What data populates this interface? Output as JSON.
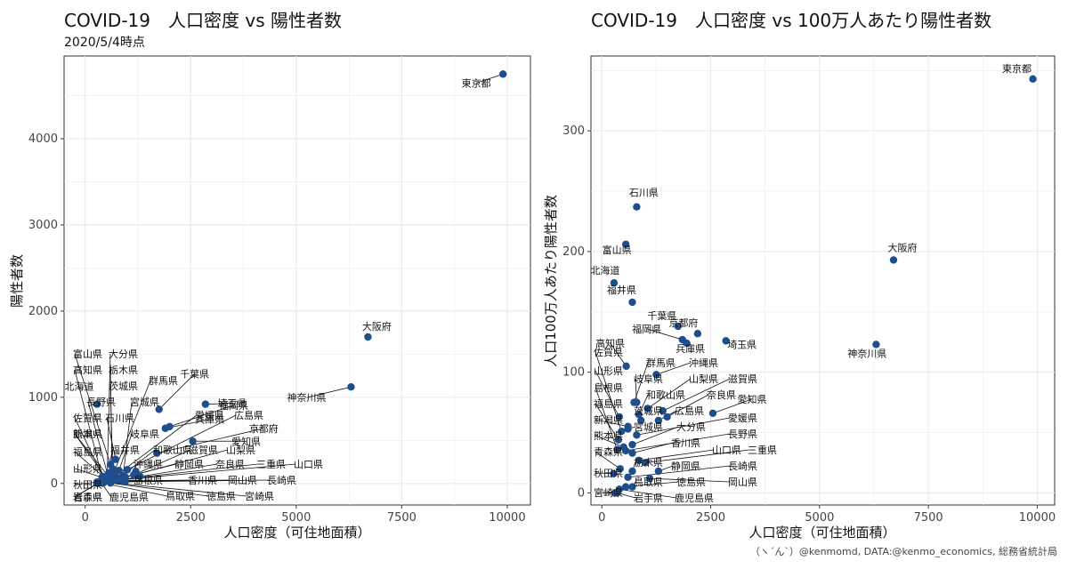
{
  "caption": "（ヽ´ん`）@kenmomd, DATA:@kenmo_economics, 総務省統計局",
  "colors": {
    "point": "#1f4e8c",
    "grid": "#ebebeb",
    "frame": "#333333"
  },
  "chart_data": [
    {
      "type": "scatter",
      "title": "COVID-19　人口密度 vs 陽性者数",
      "subtitle": "2020/5/4時点",
      "xlabel": "人口密度（可住地面積）",
      "ylabel": "陽性者数",
      "xlim": [
        -500,
        10550
      ],
      "ylim": [
        -250,
        4960
      ],
      "xticks": [
        0,
        2500,
        5000,
        7500,
        10000
      ],
      "yticks": [
        0,
        1000,
        2000,
        3000,
        4000
      ],
      "points": [
        {
          "name": "東京都",
          "x": 9900,
          "y": 4750
        },
        {
          "name": "大阪府",
          "x": 6700,
          "y": 1700
        },
        {
          "name": "神奈川県",
          "x": 6300,
          "y": 1120
        },
        {
          "name": "埼玉県",
          "x": 2850,
          "y": 920
        },
        {
          "name": "千葉県",
          "x": 1750,
          "y": 860
        },
        {
          "name": "北海道",
          "x": 280,
          "y": 920
        },
        {
          "name": "愛知県",
          "x": 2550,
          "y": 490
        },
        {
          "name": "福岡県",
          "x": 2000,
          "y": 660
        },
        {
          "name": "兵庫県",
          "x": 1900,
          "y": 640
        },
        {
          "name": "京都府",
          "x": 1700,
          "y": 350
        },
        {
          "name": "石川県",
          "x": 720,
          "y": 280
        },
        {
          "name": "富山県",
          "x": 600,
          "y": 220
        },
        {
          "name": "茨城県",
          "x": 650,
          "y": 170
        },
        {
          "name": "群馬県",
          "x": 700,
          "y": 150
        },
        {
          "name": "広島県",
          "x": 1000,
          "y": 160
        },
        {
          "name": "福井県",
          "x": 560,
          "y": 120
        },
        {
          "name": "岐阜県",
          "x": 800,
          "y": 150
        },
        {
          "name": "沖縄県",
          "x": 1200,
          "y": 140
        },
        {
          "name": "宮城県",
          "x": 900,
          "y": 90
        },
        {
          "name": "滋賀県",
          "x": 1150,
          "y": 100
        },
        {
          "name": "大分県",
          "x": 520,
          "y": 60
        },
        {
          "name": "栃木県",
          "x": 640,
          "y": 60
        },
        {
          "name": "和歌山県",
          "x": 800,
          "y": 60
        },
        {
          "name": "愛媛県",
          "x": 700,
          "y": 80
        },
        {
          "name": "奈良県",
          "x": 1300,
          "y": 80
        },
        {
          "name": "山梨県",
          "x": 850,
          "y": 60
        },
        {
          "name": "静岡県",
          "x": 950,
          "y": 75
        },
        {
          "name": "高知県",
          "x": 400,
          "y": 70
        },
        {
          "name": "長野県",
          "x": 550,
          "y": 70
        },
        {
          "name": "新潟県",
          "x": 500,
          "y": 60
        },
        {
          "name": "佐賀県",
          "x": 450,
          "y": 45
        },
        {
          "name": "山形県",
          "x": 400,
          "y": 70
        },
        {
          "name": "福島県",
          "x": 430,
          "y": 80
        },
        {
          "name": "熊本県",
          "x": 600,
          "y": 50
        },
        {
          "name": "三重県",
          "x": 800,
          "y": 45
        },
        {
          "name": "山口県",
          "x": 700,
          "y": 37
        },
        {
          "name": "香川県",
          "x": 900,
          "y": 28
        },
        {
          "name": "岡山県",
          "x": 950,
          "y": 25
        },
        {
          "name": "長崎県",
          "x": 600,
          "y": 17
        },
        {
          "name": "島根県",
          "x": 380,
          "y": 24
        },
        {
          "name": "鳥取県",
          "x": 420,
          "y": 3
        },
        {
          "name": "徳島県",
          "x": 600,
          "y": 5
        },
        {
          "name": "宮崎県",
          "x": 450,
          "y": 17
        },
        {
          "name": "秋田県",
          "x": 280,
          "y": 16
        },
        {
          "name": "青森県",
          "x": 380,
          "y": 27
        },
        {
          "name": "岩手県",
          "x": 300,
          "y": 0
        },
        {
          "name": "鹿児島県",
          "x": 380,
          "y": 10
        }
      ]
    },
    {
      "type": "scatter",
      "title": "COVID-19　人口密度 vs 100万人あたり陽性者数",
      "xlabel": "人口密度（可住地面積）",
      "ylabel": "人口100万人あたり陽性者数",
      "xlim": [
        -250,
        10400
      ],
      "ylim": [
        -10,
        362
      ],
      "xticks": [
        0,
        2500,
        5000,
        7500,
        10000
      ],
      "yticks": [
        0,
        100,
        200,
        300
      ],
      "points": [
        {
          "name": "東京都",
          "x": 9900,
          "y": 343
        },
        {
          "name": "石川県",
          "x": 800,
          "y": 237
        },
        {
          "name": "富山県",
          "x": 550,
          "y": 206
        },
        {
          "name": "大阪府",
          "x": 6700,
          "y": 193
        },
        {
          "name": "北海道",
          "x": 280,
          "y": 174
        },
        {
          "name": "福井県",
          "x": 700,
          "y": 158
        },
        {
          "name": "千葉県",
          "x": 1750,
          "y": 138
        },
        {
          "name": "京都府",
          "x": 2200,
          "y": 132
        },
        {
          "name": "福岡県",
          "x": 1850,
          "y": 127
        },
        {
          "name": "兵庫県",
          "x": 1950,
          "y": 124
        },
        {
          "name": "埼玉県",
          "x": 2850,
          "y": 126
        },
        {
          "name": "神奈川県",
          "x": 6300,
          "y": 123
        },
        {
          "name": "高知県",
          "x": 560,
          "y": 105
        },
        {
          "name": "群馬県",
          "x": 740,
          "y": 75
        },
        {
          "name": "沖縄県",
          "x": 1250,
          "y": 98
        },
        {
          "name": "佐賀県",
          "x": 450,
          "y": 51
        },
        {
          "name": "山梨県",
          "x": 1050,
          "y": 70
        },
        {
          "name": "岐阜県",
          "x": 800,
          "y": 75
        },
        {
          "name": "滋賀県",
          "x": 1400,
          "y": 68
        },
        {
          "name": "山形県",
          "x": 400,
          "y": 63
        },
        {
          "name": "和歌山県",
          "x": 850,
          "y": 65
        },
        {
          "name": "奈良県",
          "x": 1500,
          "y": 63
        },
        {
          "name": "島根県",
          "x": 350,
          "y": 36
        },
        {
          "name": "茨城県",
          "x": 900,
          "y": 60
        },
        {
          "name": "愛知県",
          "x": 2550,
          "y": 66
        },
        {
          "name": "福島県",
          "x": 380,
          "y": 44
        },
        {
          "name": "広島県",
          "x": 1300,
          "y": 60
        },
        {
          "name": "新潟県",
          "x": 600,
          "y": 55
        },
        {
          "name": "愛媛県",
          "x": 800,
          "y": 48
        },
        {
          "name": "宮城県",
          "x": 600,
          "y": 53
        },
        {
          "name": "熊本県",
          "x": 500,
          "y": 38
        },
        {
          "name": "大分県",
          "x": 700,
          "y": 40
        },
        {
          "name": "香川県",
          "x": 700,
          "y": 33
        },
        {
          "name": "長野県",
          "x": 550,
          "y": 35
        },
        {
          "name": "青森県",
          "x": 420,
          "y": 20
        },
        {
          "name": "山口県",
          "x": 850,
          "y": 27
        },
        {
          "name": "三重県",
          "x": 1000,
          "y": 25
        },
        {
          "name": "栃木県",
          "x": 700,
          "y": 18
        },
        {
          "name": "静岡県",
          "x": 1300,
          "y": 18
        },
        {
          "name": "長崎県",
          "x": 600,
          "y": 13
        },
        {
          "name": "秋田県",
          "x": 270,
          "y": 16
        },
        {
          "name": "鳥取県",
          "x": 700,
          "y": 5
        },
        {
          "name": "徳島県",
          "x": 550,
          "y": 5
        },
        {
          "name": "岡山県",
          "x": 1100,
          "y": 12
        },
        {
          "name": "宮崎県",
          "x": 300,
          "y": 0
        },
        {
          "name": "岩手県",
          "x": 350,
          "y": 0
        },
        {
          "name": "鹿児島県",
          "x": 400,
          "y": 3
        }
      ]
    }
  ]
}
